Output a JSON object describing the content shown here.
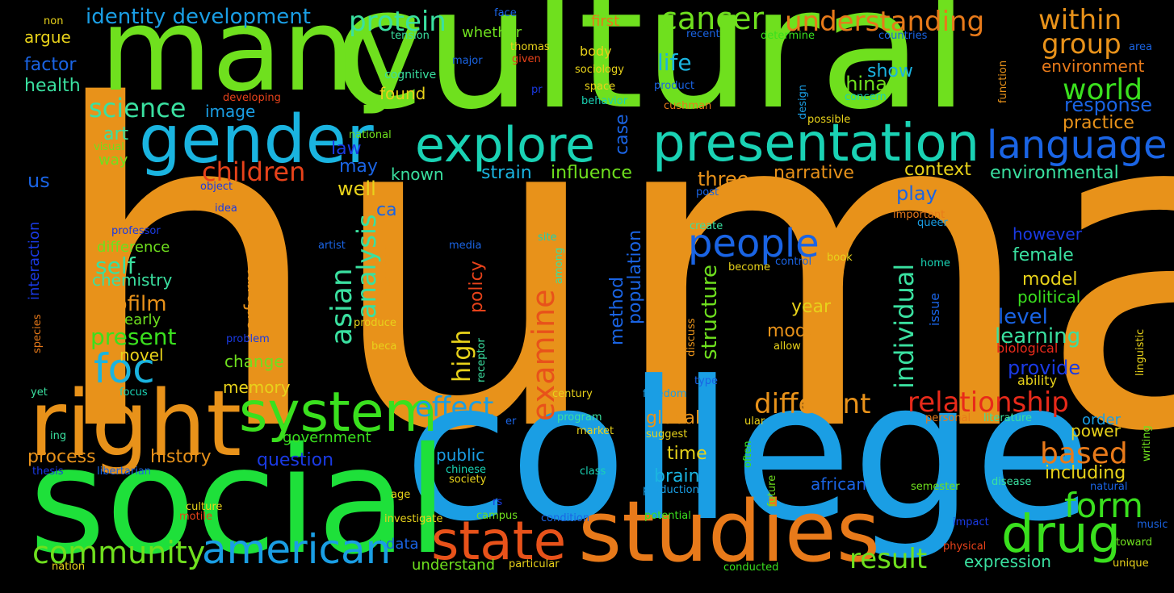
{
  "words": [
    {
      "text": "human",
      "color": "#e8921a",
      "vertical": false
    },
    {
      "text": "cultural",
      "color": "#6fe01e",
      "vertical": false
    },
    {
      "text": "many",
      "color": "#6fe01e",
      "vertical": false
    },
    {
      "text": "college",
      "color": "#1a9ee4",
      "vertical": false
    },
    {
      "text": "social",
      "color": "#1ee03a",
      "vertical": false
    },
    {
      "text": "right",
      "color": "#e8921a",
      "vertical": false
    },
    {
      "text": "studies",
      "color": "#e87a1a",
      "vertical": false
    },
    {
      "text": "gender",
      "color": "#1ab4e0",
      "vertical": false
    },
    {
      "text": "presentation",
      "color": "#1ad2b4",
      "vertical": false
    },
    {
      "text": "explore",
      "color": "#1ad2b4",
      "vertical": false
    },
    {
      "text": "system",
      "color": "#3ae01e",
      "vertical": false
    },
    {
      "text": "state",
      "color": "#e8521a",
      "vertical": false
    },
    {
      "text": "american",
      "color": "#1a9ee4",
      "vertical": false
    },
    {
      "text": "foc",
      "color": "#1ab4e0",
      "vertical": false
    },
    {
      "text": "drug",
      "color": "#3ae01e",
      "vertical": false
    },
    {
      "text": "people",
      "color": "#1a64e4",
      "vertical": false
    },
    {
      "text": "language",
      "color": "#1a64e4",
      "vertical": false
    },
    {
      "text": "cancer",
      "color": "#6fe01e",
      "vertical": false
    },
    {
      "text": "understanding",
      "color": "#e87a1a",
      "vertical": false
    },
    {
      "text": "protein",
      "color": "#3ae0a0",
      "vertical": false
    },
    {
      "text": "within",
      "color": "#e8921a",
      "vertical": false
    },
    {
      "text": "group",
      "color": "#e8921a",
      "vertical": false
    },
    {
      "text": "world",
      "color": "#3ae01e",
      "vertical": false
    },
    {
      "text": "identity development",
      "color": "#1a9ee4",
      "vertical": false
    },
    {
      "text": "relationship",
      "color": "#e82a1a",
      "vertical": false
    },
    {
      "text": "different",
      "color": "#e8921a",
      "vertical": false
    },
    {
      "text": "community",
      "color": "#6fe01e",
      "vertical": false
    },
    {
      "text": "form",
      "color": "#3ae01e",
      "vertical": false
    },
    {
      "text": "result",
      "color": "#6fe01e",
      "vertical": false
    },
    {
      "text": "based",
      "color": "#e87a1a",
      "vertical": false
    },
    {
      "text": "effect",
      "color": "#1a9ee4",
      "vertical": false
    },
    {
      "text": "children",
      "color": "#e8421a",
      "vertical": false
    },
    {
      "text": "science",
      "color": "#3ae0a0",
      "vertical": false
    },
    {
      "text": "examine",
      "color": "#e8521a",
      "vertical": true
    },
    {
      "text": "asian",
      "color": "#3ae0a0",
      "vertical": true
    },
    {
      "text": "analysis",
      "color": "#3ae0a0",
      "vertical": true
    },
    {
      "text": "individual",
      "color": "#3ae0a0",
      "vertical": true
    },
    {
      "text": "life",
      "color": "#1ab4e0",
      "vertical": false
    },
    {
      "text": "china",
      "color": "#6fe01e",
      "vertical": false
    },
    {
      "text": "show",
      "color": "#1ab4e0",
      "vertical": false
    },
    {
      "text": "response",
      "color": "#1a64e4",
      "vertical": false
    },
    {
      "text": "practice",
      "color": "#e8921a",
      "vertical": false
    },
    {
      "text": "environment",
      "color": "#e87a1a",
      "vertical": false
    },
    {
      "text": "environmental",
      "color": "#3ae0a0",
      "vertical": false
    },
    {
      "text": "context",
      "color": "#e8d21a",
      "vertical": false
    },
    {
      "text": "narrative",
      "color": "#e8921a",
      "vertical": false
    },
    {
      "text": "three",
      "color": "#e8921a",
      "vertical": false
    },
    {
      "text": "influence",
      "color": "#6fe01e",
      "vertical": false
    },
    {
      "text": "strain",
      "color": "#1ab4e0",
      "vertical": false
    },
    {
      "text": "known",
      "color": "#3ae0a0",
      "vertical": false
    },
    {
      "text": "well",
      "color": "#e8d21a",
      "vertical": false
    },
    {
      "text": "may",
      "color": "#1a64e4",
      "vertical": false
    },
    {
      "text": "law",
      "color": "#1a3ae4",
      "vertical": false
    },
    {
      "text": "play",
      "color": "#1a64e4",
      "vertical": false
    },
    {
      "text": "ca",
      "color": "#1a64e4",
      "vertical": false
    },
    {
      "text": "however",
      "color": "#1a3ae4",
      "vertical": false
    },
    {
      "text": "female",
      "color": "#3ae0a0",
      "vertical": false
    },
    {
      "text": "model",
      "color": "#e8d21a",
      "vertical": false
    },
    {
      "text": "political",
      "color": "#3ae01e",
      "vertical": false
    },
    {
      "text": "level",
      "color": "#1a64e4",
      "vertical": false
    },
    {
      "text": "learning",
      "color": "#3ae0a0",
      "vertical": false
    },
    {
      "text": "provide",
      "color": "#1a3ae4",
      "vertical": false
    },
    {
      "text": "biological",
      "color": "#e82a1a",
      "vertical": false
    },
    {
      "text": "ability",
      "color": "#e8d21a",
      "vertical": false
    },
    {
      "text": "year",
      "color": "#e8d21a",
      "vertical": false
    },
    {
      "text": "modern",
      "color": "#e8921a",
      "vertical": false
    },
    {
      "text": "high",
      "color": "#e8d21a",
      "vertical": true
    },
    {
      "text": "structure",
      "color": "#6fe01e",
      "vertical": true
    },
    {
      "text": "population",
      "color": "#1a64e4",
      "vertical": true
    },
    {
      "text": "method",
      "color": "#1a64e4",
      "vertical": true
    },
    {
      "text": "performance",
      "color": "#e8921a",
      "vertical": true
    },
    {
      "text": "policy",
      "color": "#e8421a",
      "vertical": true
    },
    {
      "text": "biofilm",
      "color": "#e8921a",
      "vertical": false
    },
    {
      "text": "present",
      "color": "#3ae01e",
      "vertical": false
    },
    {
      "text": "self",
      "color": "#3ae0a0",
      "vertical": false
    },
    {
      "text": "chemistry",
      "color": "#3ae0a0",
      "vertical": false
    },
    {
      "text": "difference",
      "color": "#6fe01e",
      "vertical": false
    },
    {
      "text": "early",
      "color": "#6fe01e",
      "vertical": false
    },
    {
      "text": "novel",
      "color": "#e8d21a",
      "vertical": false
    },
    {
      "text": "change",
      "color": "#6fe01e",
      "vertical": false
    },
    {
      "text": "memory",
      "color": "#e8d21a",
      "vertical": false
    },
    {
      "text": "art",
      "color": "#3ae0a0",
      "vertical": false
    },
    {
      "text": "way",
      "color": "#6fe01e",
      "vertical": false
    },
    {
      "text": "image",
      "color": "#1a9ee4",
      "vertical": false
    },
    {
      "text": "health",
      "color": "#3ae0a0",
      "vertical": false
    },
    {
      "text": "factor",
      "color": "#1a64e4",
      "vertical": false
    },
    {
      "text": "argue",
      "color": "#e8d21a",
      "vertical": false
    },
    {
      "text": "us",
      "color": "#1a64e4",
      "vertical": false
    },
    {
      "text": "interaction",
      "color": "#1a3ae4",
      "vertical": true
    },
    {
      "text": "process",
      "color": "#e8921a",
      "vertical": false
    },
    {
      "text": "history",
      "color": "#e8921a",
      "vertical": false
    },
    {
      "text": "question",
      "color": "#1a3ae4",
      "vertical": false
    },
    {
      "text": "government",
      "color": "#3ae01e",
      "vertical": false
    },
    {
      "text": "global",
      "color": "#e8921a",
      "vertical": false
    },
    {
      "text": "time",
      "color": "#e8d21a",
      "vertical": false
    },
    {
      "text": "brain",
      "color": "#1ab4e0",
      "vertical": false
    },
    {
      "text": "public",
      "color": "#1a9ee4",
      "vertical": false
    },
    {
      "text": "expression",
      "color": "#3ae0a0",
      "vertical": false
    },
    {
      "text": "including",
      "color": "#e8d21a",
      "vertical": false
    },
    {
      "text": "power",
      "color": "#e8d21a",
      "vertical": false
    },
    {
      "text": "order",
      "color": "#1a9ee4",
      "vertical": false
    },
    {
      "text": "african",
      "color": "#1a64e4",
      "vertical": false
    },
    {
      "text": "whether",
      "color": "#6fe01e",
      "vertical": false
    },
    {
      "text": "first",
      "color": "#e87a1a",
      "vertical": false
    },
    {
      "text": "body",
      "color": "#e8d21a",
      "vertical": false
    },
    {
      "text": "found",
      "color": "#e8d21a",
      "vertical": false
    },
    {
      "text": "cognitive",
      "color": "#3ae0a0",
      "vertical": false
    },
    {
      "text": "sociology",
      "color": "#e8d21a",
      "vertical": false
    },
    {
      "text": "case",
      "color": "#1a64e4",
      "vertical": true
    },
    {
      "text": "non",
      "color": "#e8d21a",
      "vertical": false
    },
    {
      "text": "tension",
      "color": "#3ae0a0",
      "vertical": false
    },
    {
      "text": "face",
      "color": "#1a64e4",
      "vertical": false
    },
    {
      "text": "thomas",
      "color": "#e8d21a",
      "vertical": false
    },
    {
      "text": "given",
      "color": "#e8421a",
      "vertical": false
    },
    {
      "text": "major",
      "color": "#1a64e4",
      "vertical": false
    },
    {
      "text": "recent",
      "color": "#1a64e4",
      "vertical": false
    },
    {
      "text": "determine",
      "color": "#3ae01e",
      "vertical": false
    },
    {
      "text": "countries",
      "color": "#1a64e4",
      "vertical": false
    },
    {
      "text": "area",
      "color": "#1a64e4",
      "vertical": false
    },
    {
      "text": "function",
      "color": "#e8921a",
      "vertical": true
    },
    {
      "text": "design",
      "color": "#1a9ee4",
      "vertical": true
    },
    {
      "text": "concern",
      "color": "#1ad2b4",
      "vertical": false
    },
    {
      "text": "possible",
      "color": "#e8d21a",
      "vertical": false
    },
    {
      "text": "cushman",
      "color": "#e87a1a",
      "vertical": false
    },
    {
      "text": "product",
      "color": "#1a64e4",
      "vertical": false
    },
    {
      "text": "space",
      "color": "#e8d21a",
      "vertical": false
    },
    {
      "text": "behavior",
      "color": "#1ad2b4",
      "vertical": false
    },
    {
      "text": "pr",
      "color": "#1a3ae4",
      "vertical": false
    },
    {
      "text": "developing",
      "color": "#e8421a",
      "vertical": false
    },
    {
      "text": "national",
      "color": "#6fe01e",
      "vertical": false
    },
    {
      "text": "visual",
      "color": "#6fe01e",
      "vertical": false
    },
    {
      "text": "object",
      "color": "#1a3ae4",
      "vertical": false
    },
    {
      "text": "post",
      "color": "#1a64e4",
      "vertical": false
    },
    {
      "text": "important",
      "color": "#e87a1a",
      "vertical": false
    },
    {
      "text": "queer",
      "color": "#1a9ee4",
      "vertical": false
    },
    {
      "text": "create",
      "color": "#3ae0a0",
      "vertical": false
    },
    {
      "text": "idea",
      "color": "#1a3ae4",
      "vertical": false
    },
    {
      "text": "professor",
      "color": "#1a3ae4",
      "vertical": false
    },
    {
      "text": "artist",
      "color": "#1a64e4",
      "vertical": false
    },
    {
      "text": "mechanism",
      "color": "#e8921a",
      "vertical": true
    },
    {
      "text": "media",
      "color": "#1a64e4",
      "vertical": false
    },
    {
      "text": "site",
      "color": "#1ad2b4",
      "vertical": false
    },
    {
      "text": "among",
      "color": "#3ae0a0",
      "vertical": true
    },
    {
      "text": "become",
      "color": "#e8d21a",
      "vertical": false
    },
    {
      "text": "control",
      "color": "#1a64e4",
      "vertical": false
    },
    {
      "text": "book",
      "color": "#e8d21a",
      "vertical": false
    },
    {
      "text": "home",
      "color": "#1ad2b4",
      "vertical": false
    },
    {
      "text": "issue",
      "color": "#1a64e4",
      "vertical": true
    },
    {
      "text": "linguistic",
      "color": "#e8d21a",
      "vertical": true
    },
    {
      "text": "species",
      "color": "#e87a1a",
      "vertical": true
    },
    {
      "text": "problem",
      "color": "#1a3ae4",
      "vertical": false
    },
    {
      "text": "produce",
      "color": "#e8d21a",
      "vertical": false
    },
    {
      "text": "beca",
      "color": "#e8d21a",
      "vertical": false
    },
    {
      "text": "receptor",
      "color": "#3ae0a0",
      "vertical": true
    },
    {
      "text": "discuss",
      "color": "#e8921a",
      "vertical": true
    },
    {
      "text": "allow",
      "color": "#e8d21a",
      "vertical": false
    },
    {
      "text": "type",
      "color": "#1a64e4",
      "vertical": false
    },
    {
      "text": "yet",
      "color": "#3ae0a0",
      "vertical": false
    },
    {
      "text": "focus",
      "color": "#1ad2b4",
      "vertical": false
    },
    {
      "text": "century",
      "color": "#e8d21a",
      "vertical": false
    },
    {
      "text": "freedom",
      "color": "#1a9ee4",
      "vertical": false
    },
    {
      "text": "program",
      "color": "#3ae0a0",
      "vertical": false
    },
    {
      "text": "er",
      "color": "#1a64e4",
      "vertical": false
    },
    {
      "text": "ular",
      "color": "#e8d21a",
      "vertical": false
    },
    {
      "text": "personal",
      "color": "#e87a1a",
      "vertical": false
    },
    {
      "text": "literature",
      "color": "#3ae0a0",
      "vertical": false
    },
    {
      "text": "writing",
      "color": "#6fe01e",
      "vertical": true
    },
    {
      "text": "ing",
      "color": "#3ae0a0",
      "vertical": false
    },
    {
      "text": "market",
      "color": "#e8d21a",
      "vertical": false
    },
    {
      "text": "suggest",
      "color": "#e8d21a",
      "vertical": false
    },
    {
      "text": "often",
      "color": "#3ae01e",
      "vertical": true
    },
    {
      "text": "future",
      "color": "#6fe01e",
      "vertical": true
    },
    {
      "text": "thesis",
      "color": "#1a3ae4",
      "vertical": false
    },
    {
      "text": "libertarian",
      "color": "#1a64e4",
      "vertical": false
    },
    {
      "text": "chinese",
      "color": "#1ad2b4",
      "vertical": false
    },
    {
      "text": "class",
      "color": "#1ad2b4",
      "vertical": false
    },
    {
      "text": "society",
      "color": "#e8d21a",
      "vertical": false
    },
    {
      "text": "production",
      "color": "#1a9ee4",
      "vertical": false
    },
    {
      "text": "semester",
      "color": "#6fe01e",
      "vertical": false
    },
    {
      "text": "disease",
      "color": "#3ae0a0",
      "vertical": false
    },
    {
      "text": "natural",
      "color": "#1a64e4",
      "vertical": false
    },
    {
      "text": "age",
      "color": "#e8d21a",
      "vertical": false
    },
    {
      "text": "rs",
      "color": "#1a3ae4",
      "vertical": false
    },
    {
      "text": "culture",
      "color": "#e8d21a",
      "vertical": false
    },
    {
      "text": "motile",
      "color": "#e8421a",
      "vertical": false
    },
    {
      "text": "investigate",
      "color": "#e8d21a",
      "vertical": false
    },
    {
      "text": "campus",
      "color": "#6fe01e",
      "vertical": false
    },
    {
      "text": "condition",
      "color": "#1a64e4",
      "vertical": false
    },
    {
      "text": "potential",
      "color": "#3ae01e",
      "vertical": false
    },
    {
      "text": "impact",
      "color": "#1a3ae4",
      "vertical": false
    },
    {
      "text": "music",
      "color": "#1a64e4",
      "vertical": false
    },
    {
      "text": "toward",
      "color": "#6fe01e",
      "vertical": false
    },
    {
      "text": "data",
      "color": "#1a64e4",
      "vertical": false
    },
    {
      "text": "understand",
      "color": "#6fe01e",
      "vertical": false
    },
    {
      "text": "physical",
      "color": "#e8421a",
      "vertical": false
    },
    {
      "text": "unique",
      "color": "#e8d21a",
      "vertical": false
    },
    {
      "text": "nation",
      "color": "#e8d21a",
      "vertical": false
    },
    {
      "text": "particular",
      "color": "#e8d21a",
      "vertical": false
    },
    {
      "text": "conducted",
      "color": "#3ae01e",
      "vertical": false
    }
  ]
}
